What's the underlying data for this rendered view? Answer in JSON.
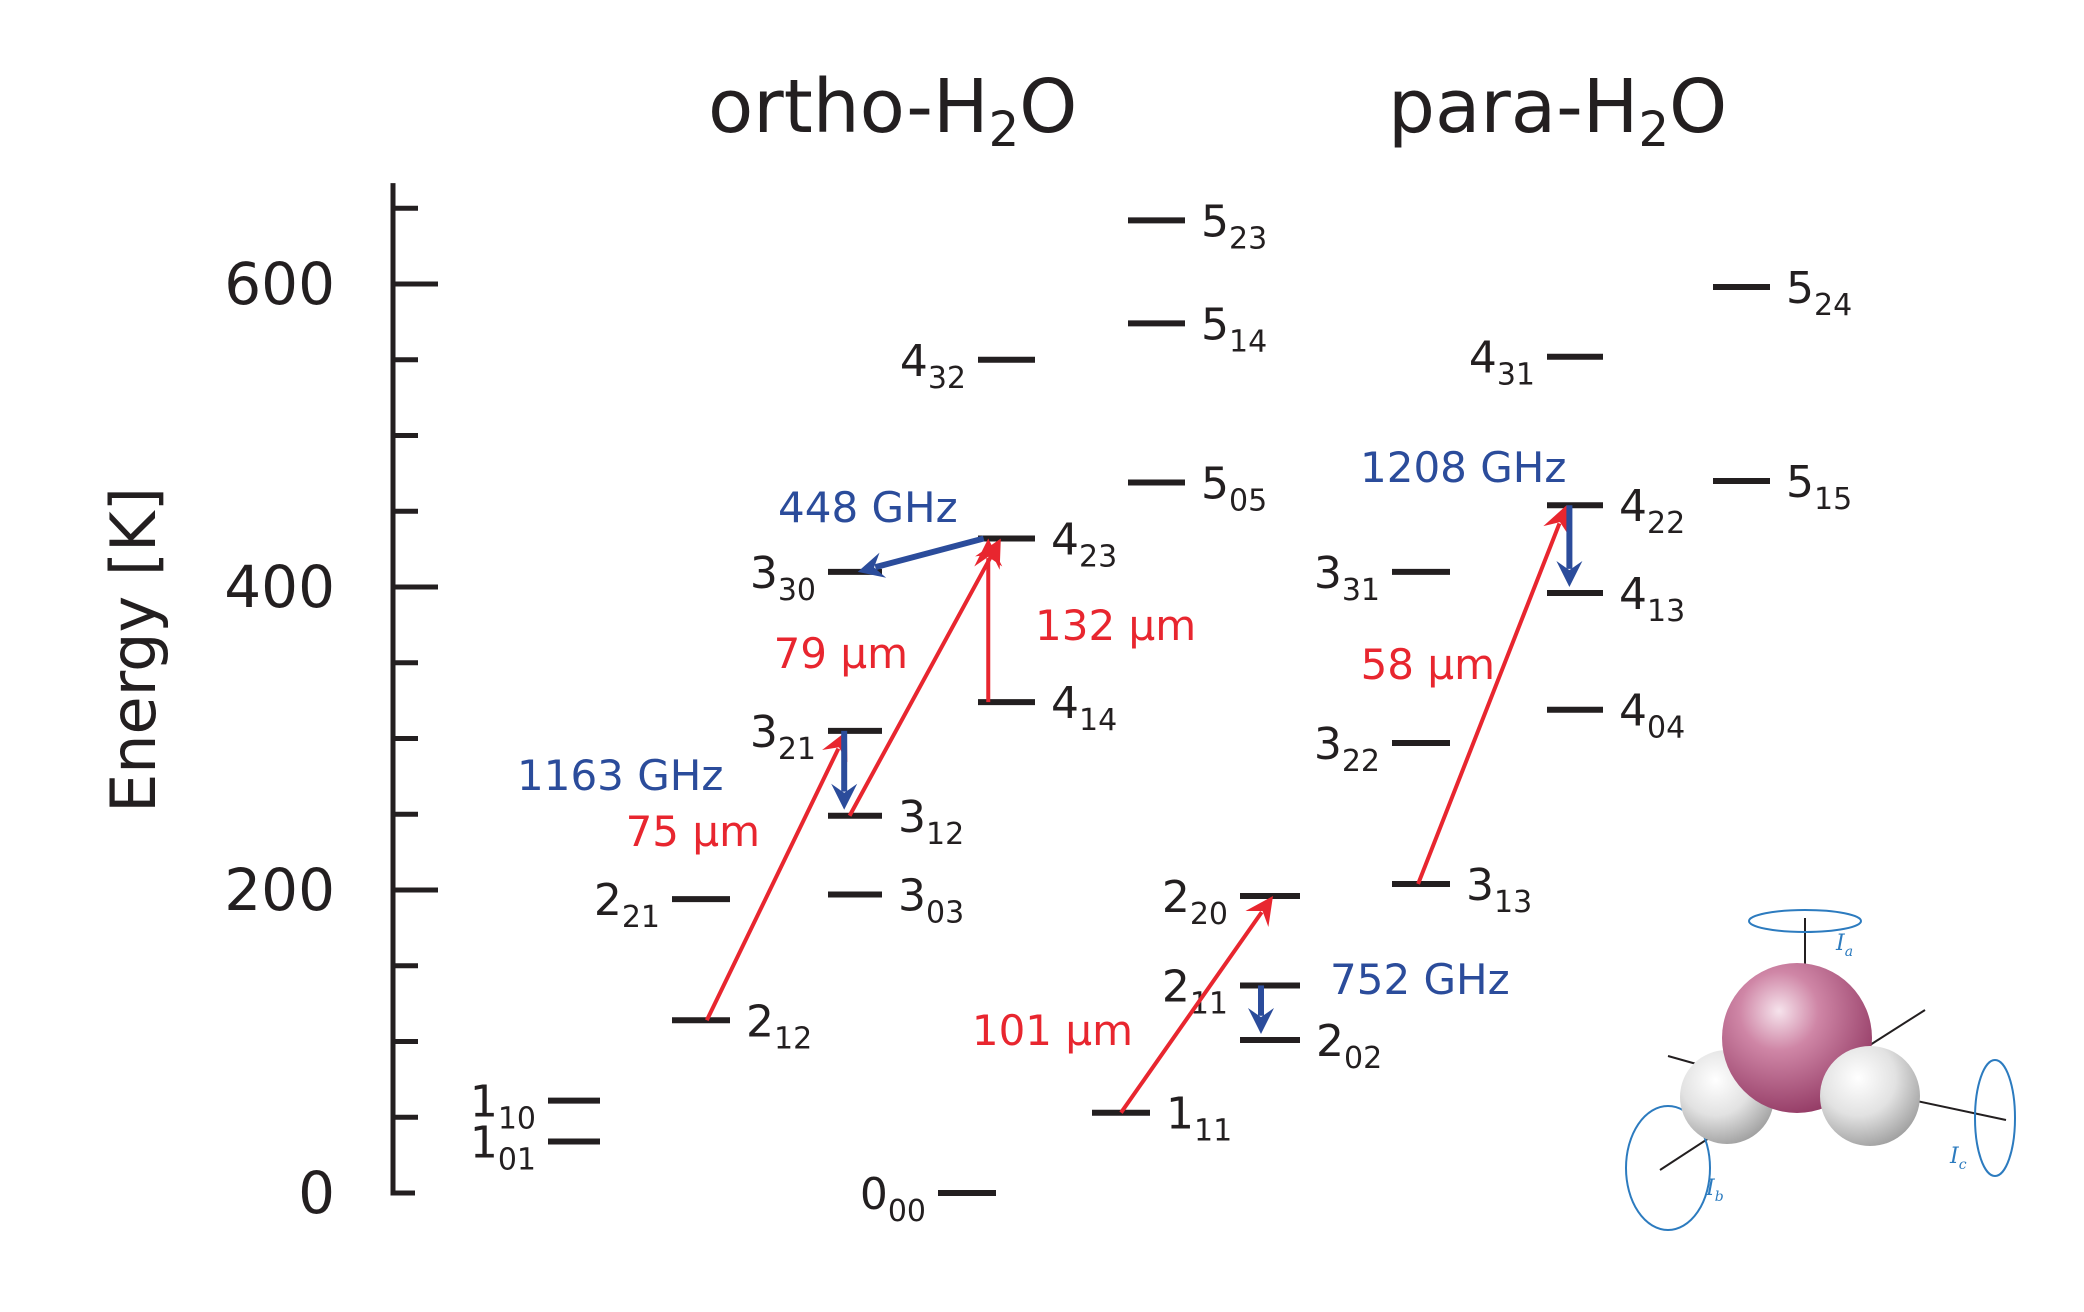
{
  "titles": {
    "ortho": "ortho-H",
    "ortho_sub": "2",
    "ortho_tail": "O",
    "para": "para-H",
    "para_sub": "2",
    "para_tail": "O"
  },
  "axis": {
    "label": "Energy [K]",
    "ylim": [
      0,
      660
    ],
    "major_ticks": [
      0,
      200,
      400,
      600
    ],
    "major_tick_labels": [
      "0",
      "200",
      "400",
      "600"
    ],
    "minor_step": 50
  },
  "colors": {
    "black": "#231f20",
    "red": "#e8262f",
    "blue": "#2b4c9b",
    "molecule_axis": "#2c7bbf",
    "oxygen": "#b5577f",
    "hydrogen": "#d9d9d9"
  },
  "levels": [
    {
      "id": "1_10",
      "main": "1",
      "sub": "10",
      "energy": 61,
      "column": "ortho-1",
      "label_side": "left"
    },
    {
      "id": "1_01",
      "main": "1",
      "sub": "01",
      "energy": 34,
      "column": "ortho-1",
      "label_side": "left"
    },
    {
      "id": "2_21",
      "main": "2",
      "sub": "21",
      "energy": 194,
      "column": "ortho-2",
      "label_side": "left"
    },
    {
      "id": "2_12",
      "main": "2",
      "sub": "12",
      "energy": 114,
      "column": "ortho-2",
      "label_side": "right"
    },
    {
      "id": "3_30",
      "main": "3",
      "sub": "30",
      "energy": 410,
      "column": "ortho-3",
      "label_side": "left"
    },
    {
      "id": "3_21",
      "main": "3",
      "sub": "21",
      "energy": 305,
      "column": "ortho-3",
      "label_side": "left"
    },
    {
      "id": "3_12",
      "main": "3",
      "sub": "12",
      "energy": 249,
      "column": "ortho-3",
      "label_side": "right"
    },
    {
      "id": "3_03",
      "main": "3",
      "sub": "03",
      "energy": 197,
      "column": "ortho-3",
      "label_side": "right"
    },
    {
      "id": "0_00",
      "main": "0",
      "sub": "00",
      "energy": 0,
      "column": "ortho-3b",
      "label_side": "left"
    },
    {
      "id": "4_32",
      "main": "4",
      "sub": "32",
      "energy": 550,
      "column": "ortho-4",
      "label_side": "left"
    },
    {
      "id": "4_23",
      "main": "4",
      "sub": "23",
      "energy": 432,
      "column": "ortho-4",
      "label_side": "right"
    },
    {
      "id": "4_14",
      "main": "4",
      "sub": "14",
      "energy": 324,
      "column": "ortho-4",
      "label_side": "right"
    },
    {
      "id": "5_23",
      "main": "5",
      "sub": "23",
      "energy": 642,
      "column": "ortho-5",
      "label_side": "right"
    },
    {
      "id": "5_14",
      "main": "5",
      "sub": "14",
      "energy": 574,
      "column": "ortho-5",
      "label_side": "right"
    },
    {
      "id": "5_05",
      "main": "5",
      "sub": "05",
      "energy": 469,
      "column": "ortho-5",
      "label_side": "right"
    },
    {
      "id": "2_20",
      "main": "2",
      "sub": "20",
      "energy": 196,
      "column": "para-2",
      "label_side": "left"
    },
    {
      "id": "2_11",
      "main": "2",
      "sub": "11",
      "energy": 137,
      "column": "para-2",
      "label_side": "left"
    },
    {
      "id": "2_02",
      "main": "2",
      "sub": "02",
      "energy": 101,
      "column": "para-2",
      "label_side": "right"
    },
    {
      "id": "1_11",
      "main": "1",
      "sub": "11",
      "energy": 53,
      "column": "para-1",
      "label_side": "right"
    },
    {
      "id": "3_31",
      "main": "3",
      "sub": "31",
      "energy": 410,
      "column": "para-3",
      "label_side": "left"
    },
    {
      "id": "3_22",
      "main": "3",
      "sub": "22",
      "energy": 297,
      "column": "para-3",
      "label_side": "left"
    },
    {
      "id": "3_13",
      "main": "3",
      "sub": "13",
      "energy": 204,
      "column": "para-3",
      "label_side": "right"
    },
    {
      "id": "4_31",
      "main": "4",
      "sub": "31",
      "energy": 552,
      "column": "para-4",
      "label_side": "left"
    },
    {
      "id": "4_22",
      "main": "4",
      "sub": "22",
      "energy": 454,
      "column": "para-4",
      "label_side": "right"
    },
    {
      "id": "4_13",
      "main": "4",
      "sub": "13",
      "energy": 396,
      "column": "para-4",
      "label_side": "right"
    },
    {
      "id": "4_04",
      "main": "4",
      "sub": "04",
      "energy": 319,
      "column": "para-4",
      "label_side": "right"
    },
    {
      "id": "5_24",
      "main": "5",
      "sub": "24",
      "energy": 598,
      "column": "para-5",
      "label_side": "right"
    },
    {
      "id": "5_15",
      "main": "5",
      "sub": "15",
      "energy": 470,
      "column": "para-5",
      "label_side": "right"
    }
  ],
  "transitions": [
    {
      "from": "2_12",
      "to": "3_21",
      "label": "75 μm",
      "color": "red"
    },
    {
      "from": "3_12",
      "to": "4_23",
      "label": "79 μm",
      "color": "red"
    },
    {
      "from": "4_14",
      "to": "4_23",
      "label": "132 μm",
      "color": "red"
    },
    {
      "from": "4_23",
      "to": "3_30",
      "label": "448 GHz",
      "color": "blue"
    },
    {
      "from": "3_21",
      "to": "3_12",
      "label": "1163 GHz",
      "color": "blue"
    },
    {
      "from": "1_11",
      "to": "2_20",
      "label": "101 μm",
      "color": "red"
    },
    {
      "from": "2_11",
      "to": "2_02",
      "label": "752 GHz",
      "color": "blue"
    },
    {
      "from": "3_13",
      "to": "4_22",
      "label": "58 μm",
      "color": "red"
    },
    {
      "from": "4_22",
      "to": "4_13",
      "label": "1208 GHz",
      "color": "blue"
    }
  ],
  "molecule": {
    "axis_labels": [
      {
        "main": "I",
        "sub": "a"
      },
      {
        "main": "I",
        "sub": "b"
      },
      {
        "main": "I",
        "sub": "c"
      }
    ]
  }
}
